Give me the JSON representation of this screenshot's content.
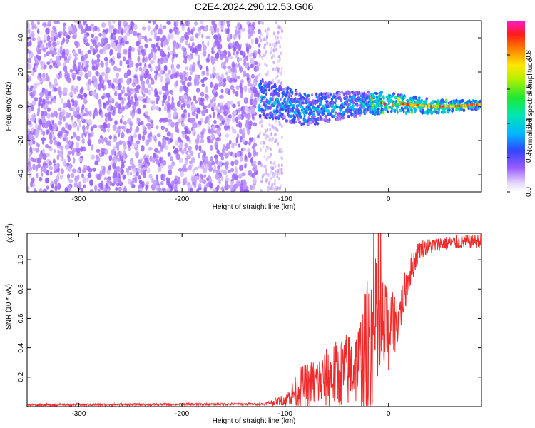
{
  "title": "C2E4.2024.290.12.53.G06",
  "colors": {
    "snr_line": "#ee2a2a",
    "axis": "#000000"
  },
  "chart_data": [
    {
      "type": "heatmap",
      "name": "spectrogram",
      "xlabel": "Height of straight line (km)",
      "ylabel": "Frequency (Hz)",
      "xlim": [
        -350,
        90
      ],
      "ylim": [
        -50,
        50
      ],
      "x_ticks": [
        -300,
        -200,
        -100,
        0
      ],
      "x_tick_labels": [
        "-300",
        "-200",
        "-100",
        "0"
      ],
      "y_ticks": [
        -40,
        -20,
        0,
        20,
        40
      ],
      "y_tick_labels": [
        "-40",
        "-20",
        "0",
        "20",
        "40"
      ],
      "noise_region_x": [
        -350,
        -125
      ],
      "signal_start_x": -125,
      "signal_freq_hz": [
        {
          "x": -120,
          "f": 4
        },
        {
          "x": -100,
          "f": 1
        },
        {
          "x": -80,
          "f": -2
        },
        {
          "x": -60,
          "f": -1
        },
        {
          "x": -40,
          "f": 1
        },
        {
          "x": -20,
          "f": 2
        },
        {
          "x": 0,
          "f": 2
        },
        {
          "x": 20,
          "f": 1
        },
        {
          "x": 40,
          "f": 0
        },
        {
          "x": 60,
          "f": 0
        },
        {
          "x": 90,
          "f": 1
        }
      ],
      "colorbar": {
        "label": "Normalized spectral amplitude",
        "range": [
          0.0,
          1.0
        ],
        "ticks": [
          0.0,
          0.2,
          0.4,
          0.6,
          0.8
        ],
        "tick_labels": [
          "0.0",
          "0.2",
          "0.4",
          "0.6",
          "0.8"
        ]
      }
    },
    {
      "type": "line",
      "name": "snr",
      "xlabel": "Height of straight line (km)",
      "ylabel": "SNR (10 * v/v)",
      "y_scale_label": "(x10",
      "y_scale_exponent": "4",
      "xlim": [
        -350,
        90
      ],
      "ylim": [
        0,
        1.18
      ],
      "x_ticks": [
        -300,
        -200,
        -100,
        0
      ],
      "x_tick_labels": [
        "-300",
        "-200",
        "-100",
        "0"
      ],
      "y_ticks": [
        0.2,
        0.4,
        0.6,
        0.8,
        1.0
      ],
      "y_tick_labels": [
        "0.2",
        "0.4",
        "0.6",
        "0.8",
        "1.0"
      ],
      "envelope": [
        {
          "x": -350,
          "base": 0.01,
          "amp": 0.01
        },
        {
          "x": -120,
          "base": 0.015,
          "amp": 0.01
        },
        {
          "x": -100,
          "base": 0.04,
          "amp": 0.05
        },
        {
          "x": -85,
          "base": 0.1,
          "amp": 0.18
        },
        {
          "x": -70,
          "base": 0.13,
          "amp": 0.22
        },
        {
          "x": -50,
          "base": 0.17,
          "amp": 0.3
        },
        {
          "x": -30,
          "base": 0.22,
          "amp": 0.35
        },
        {
          "x": -15,
          "base": 0.35,
          "amp": 0.75
        },
        {
          "x": 0,
          "base": 0.45,
          "amp": 0.35
        },
        {
          "x": 10,
          "base": 0.58,
          "amp": 0.2
        },
        {
          "x": 20,
          "base": 0.88,
          "amp": 0.15
        },
        {
          "x": 30,
          "base": 1.06,
          "amp": 0.08
        },
        {
          "x": 50,
          "base": 1.1,
          "amp": 0.06
        },
        {
          "x": 90,
          "base": 1.12,
          "amp": 0.06
        }
      ]
    }
  ]
}
